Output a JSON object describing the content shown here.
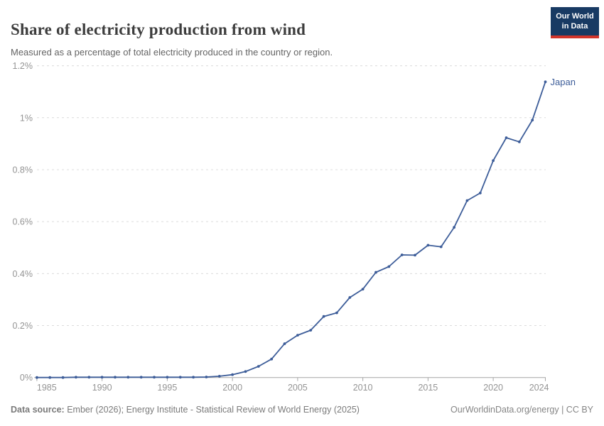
{
  "header": {
    "title": "Share of electricity production from wind",
    "subtitle": "Measured as a percentage of total electricity produced in the country or region."
  },
  "logo": {
    "line1": "Our World",
    "line2": "in Data",
    "bg_color": "#183a63",
    "bar_color": "#d2352b"
  },
  "footer": {
    "source_label": "Data source:",
    "source_text": " Ember (2026); Energy Institute - Statistical Review of World Energy (2025)",
    "right_text": "OurWorldinData.org/energy | CC BY"
  },
  "chart_data": {
    "type": "line",
    "title": "Share of electricity production from wind",
    "xlabel": "",
    "ylabel": "",
    "xlim": [
      1985,
      2024
    ],
    "ylim": [
      0,
      1.2
    ],
    "grid": "horizontal-dashed",
    "legend_position": "end-of-line-label",
    "xticks": [
      {
        "v": 1985,
        "label": "1985"
      },
      {
        "v": 1990,
        "label": "1990"
      },
      {
        "v": 1995,
        "label": "1995"
      },
      {
        "v": 2000,
        "label": "2000"
      },
      {
        "v": 2005,
        "label": "2005"
      },
      {
        "v": 2010,
        "label": "2010"
      },
      {
        "v": 2015,
        "label": "2015"
      },
      {
        "v": 2020,
        "label": "2020"
      },
      {
        "v": 2024,
        "label": "2024"
      }
    ],
    "yticks": [
      {
        "v": 0,
        "label": "0%"
      },
      {
        "v": 0.2,
        "label": "0.2%"
      },
      {
        "v": 0.4,
        "label": "0.4%"
      },
      {
        "v": 0.6,
        "label": "0.6%"
      },
      {
        "v": 0.8,
        "label": "0.8%"
      },
      {
        "v": 1.0,
        "label": "1%"
      },
      {
        "v": 1.2,
        "label": "1.2%"
      }
    ],
    "series": [
      {
        "name": "Japan",
        "color": "#3d5d99",
        "points": [
          [
            1985,
            0.0
          ],
          [
            1986,
            0.0
          ],
          [
            1987,
            0.0
          ],
          [
            1988,
            0.001
          ],
          [
            1989,
            0.001
          ],
          [
            1990,
            0.001
          ],
          [
            1991,
            0.001
          ],
          [
            1992,
            0.001
          ],
          [
            1993,
            0.001
          ],
          [
            1994,
            0.001
          ],
          [
            1995,
            0.001
          ],
          [
            1996,
            0.001
          ],
          [
            1997,
            0.001
          ],
          [
            1998,
            0.002
          ],
          [
            1999,
            0.005
          ],
          [
            2000,
            0.011
          ],
          [
            2001,
            0.023
          ],
          [
            2002,
            0.043
          ],
          [
            2003,
            0.071
          ],
          [
            2004,
            0.13
          ],
          [
            2005,
            0.163
          ],
          [
            2006,
            0.182
          ],
          [
            2007,
            0.235
          ],
          [
            2008,
            0.249
          ],
          [
            2009,
            0.308
          ],
          [
            2010,
            0.34
          ],
          [
            2011,
            0.405
          ],
          [
            2012,
            0.427
          ],
          [
            2013,
            0.472
          ],
          [
            2014,
            0.471
          ],
          [
            2015,
            0.509
          ],
          [
            2016,
            0.503
          ],
          [
            2017,
            0.578
          ],
          [
            2018,
            0.681
          ],
          [
            2019,
            0.71
          ],
          [
            2020,
            0.835
          ],
          [
            2021,
            0.923
          ],
          [
            2022,
            0.907
          ],
          [
            2023,
            0.991
          ],
          [
            2024,
            1.138
          ]
        ]
      }
    ],
    "colors": {
      "gridline": "#dcdcdc",
      "axis": "#a6a6a6",
      "tick_label": "#949494"
    }
  }
}
